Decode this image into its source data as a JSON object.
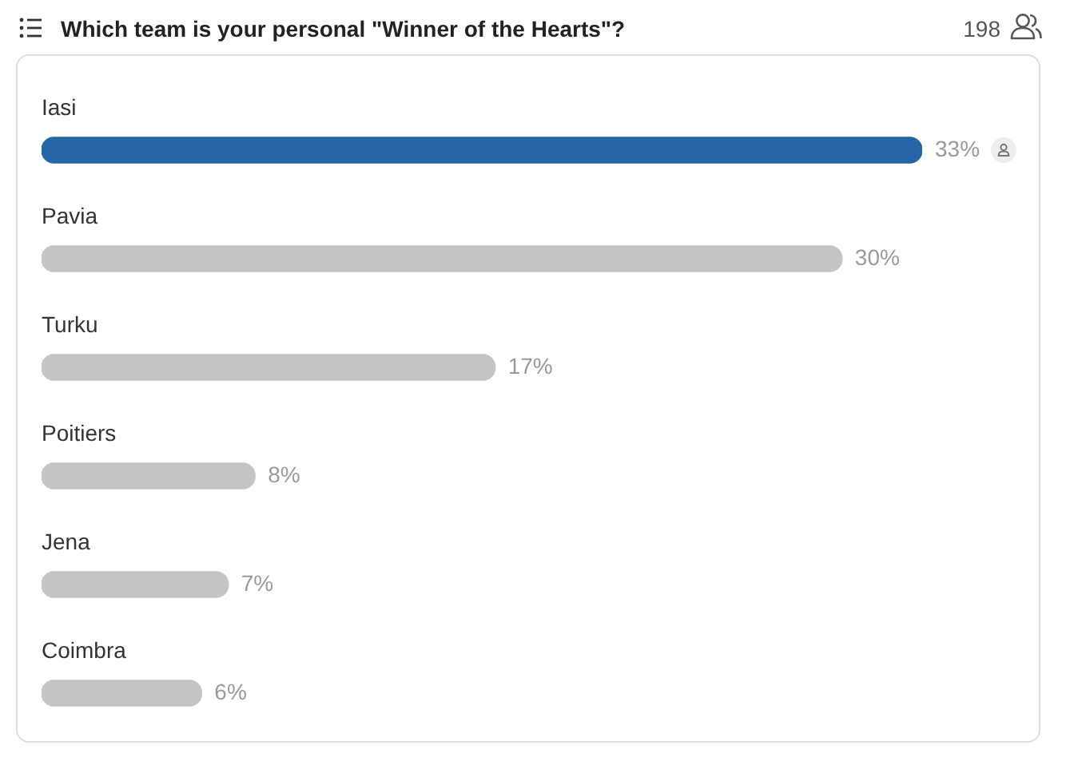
{
  "chart_data": {
    "type": "bar",
    "orientation": "horizontal",
    "title": "Which team is your personal \"Winner of the Hearts\"?",
    "categories": [
      "Iasi",
      "Pavia",
      "Turku",
      "Poitiers",
      "Jena",
      "Coimbra"
    ],
    "values": [
      33,
      30,
      17,
      8,
      7,
      6
    ],
    "colors": [
      "#2565a6",
      "#c4c4c4",
      "#c4c4c4",
      "#c4c4c4",
      "#c4c4c4",
      "#c4c4c4"
    ],
    "value_labels": [
      "33%",
      "30%",
      "17%",
      "8%",
      "7%",
      "6%"
    ],
    "xlim": [
      0,
      33
    ],
    "annotations": [
      "198"
    ]
  }
}
